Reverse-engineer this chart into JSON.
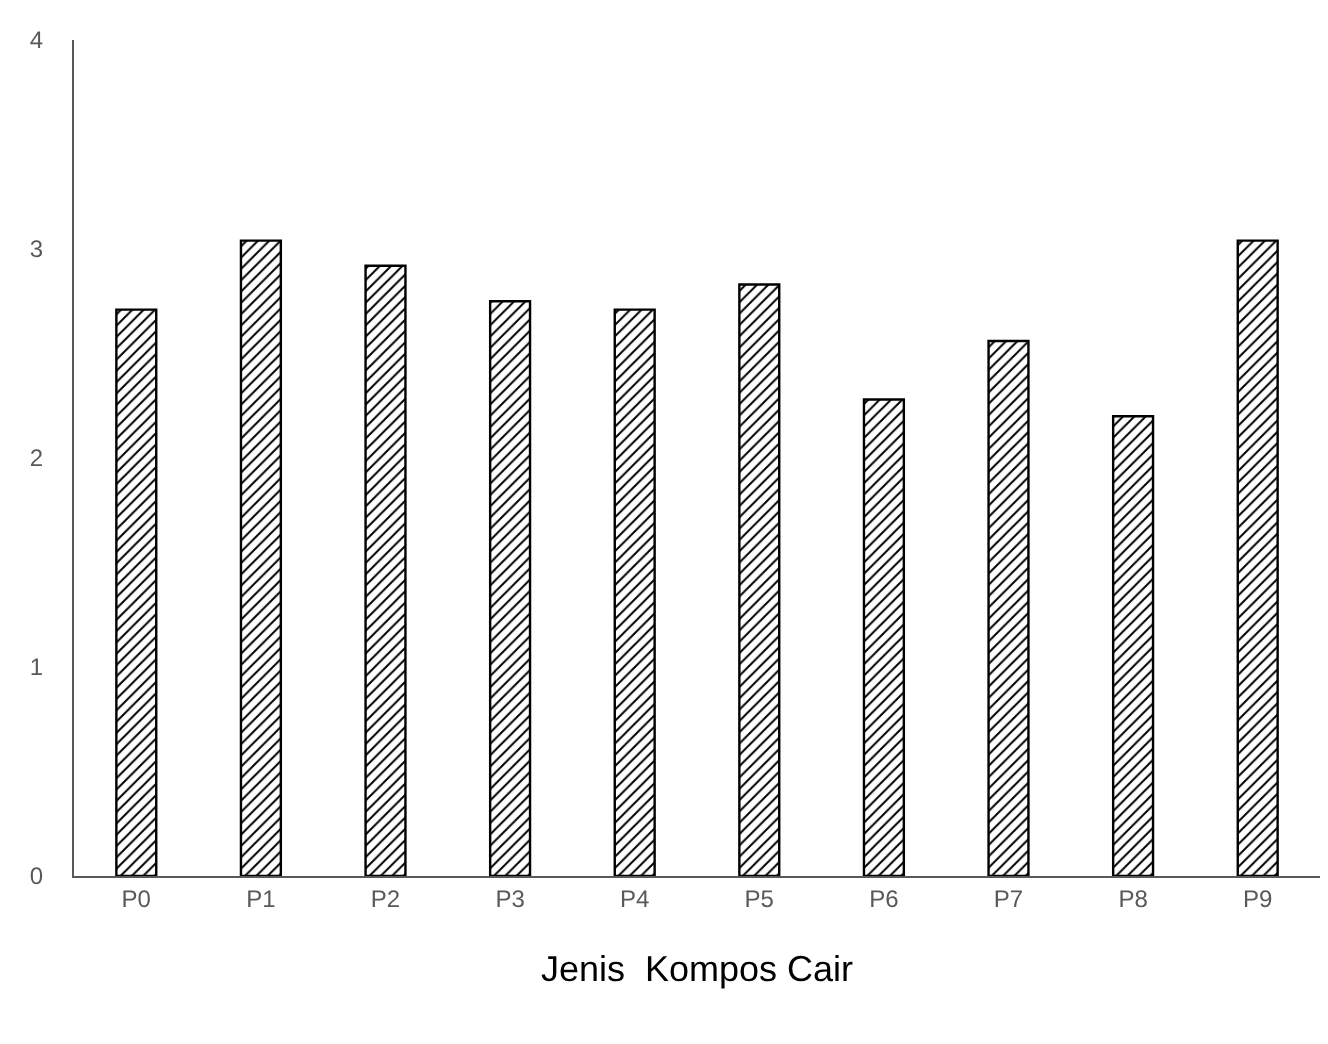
{
  "chart_data": {
    "type": "bar",
    "xlabel": "Jenis  Kompos Cair",
    "categories": [
      "P0",
      "P1",
      "P2",
      "P3",
      "P4",
      "P5",
      "P6",
      "P7",
      "P8",
      "P9"
    ],
    "values": [
      2.71,
      3.04,
      2.92,
      2.75,
      2.71,
      2.83,
      2.28,
      2.56,
      2.2,
      3.04
    ],
    "color": "#000000",
    "ylim": [
      0,
      4
    ],
    "yticks": [
      0,
      1,
      2,
      3,
      4
    ],
    "grid": false,
    "legend": false
  }
}
